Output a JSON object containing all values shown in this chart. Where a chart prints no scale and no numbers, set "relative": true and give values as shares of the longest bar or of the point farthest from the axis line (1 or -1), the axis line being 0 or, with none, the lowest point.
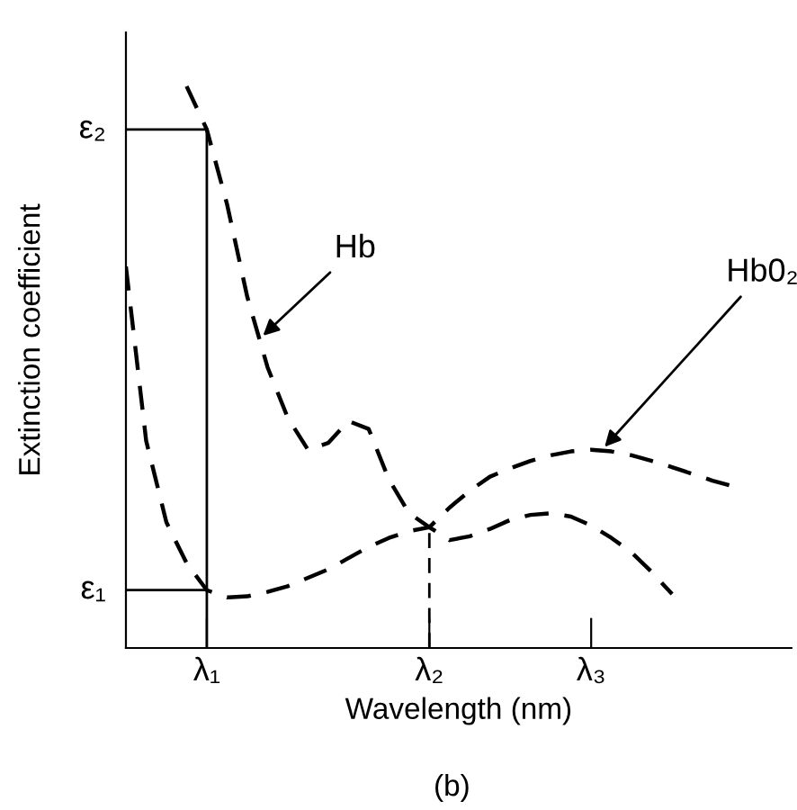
{
  "chart_data": {
    "type": "line",
    "xlabel": "Wavelength (nm)",
    "ylabel": "Extinction coefficient",
    "relative": true,
    "line_style": "dashed",
    "grid": false,
    "categories": [
      null,
      null,
      null,
      null,
      "λ₁",
      null,
      null,
      null,
      null,
      null,
      null,
      null,
      null,
      null,
      null,
      "λ₂",
      null,
      null,
      null,
      null,
      null,
      null,
      null,
      "λ₃",
      null,
      null,
      null,
      null,
      null,
      null,
      null,
      null,
      null
    ],
    "series": [
      {
        "name": "Hb",
        "color": "#000000",
        "values": [
          null,
          null,
          null,
          1.0,
          0.923,
          0.79,
          0.625,
          0.5,
          0.41,
          0.353,
          0.365,
          0.404,
          0.39,
          0.3,
          0.24,
          0.215,
          0.192,
          0.199,
          0.212,
          0.228,
          0.237,
          0.24,
          0.234,
          0.218,
          0.196,
          0.17,
          0.135,
          0.096,
          null,
          null,
          null,
          null,
          null
        ]
      },
      {
        "name": "Hb0₂",
        "color": "#000000",
        "values": [
          0.679,
          0.369,
          0.224,
          0.151,
          0.103,
          0.09,
          0.092,
          0.1,
          0.11,
          0.125,
          0.14,
          0.16,
          0.18,
          0.196,
          0.208,
          0.215,
          0.25,
          0.28,
          0.305,
          0.32,
          0.333,
          0.343,
          0.35,
          0.353,
          0.35,
          0.343,
          0.333,
          0.322,
          0.31,
          0.298,
          0.288,
          null,
          null
        ]
      }
    ],
    "ref_lines": [
      {
        "axis": "y",
        "value": 0.923,
        "label": "ε₂",
        "line_style": "solid"
      },
      {
        "axis": "y",
        "value": 0.103,
        "label": "ε₁",
        "line_style": "solid"
      },
      {
        "axis": "x",
        "value": "λ₁",
        "line_style": "solid"
      },
      {
        "axis": "x",
        "value": "λ₂",
        "line_style": "dashed"
      }
    ],
    "annotations": [
      "(b)"
    ]
  }
}
